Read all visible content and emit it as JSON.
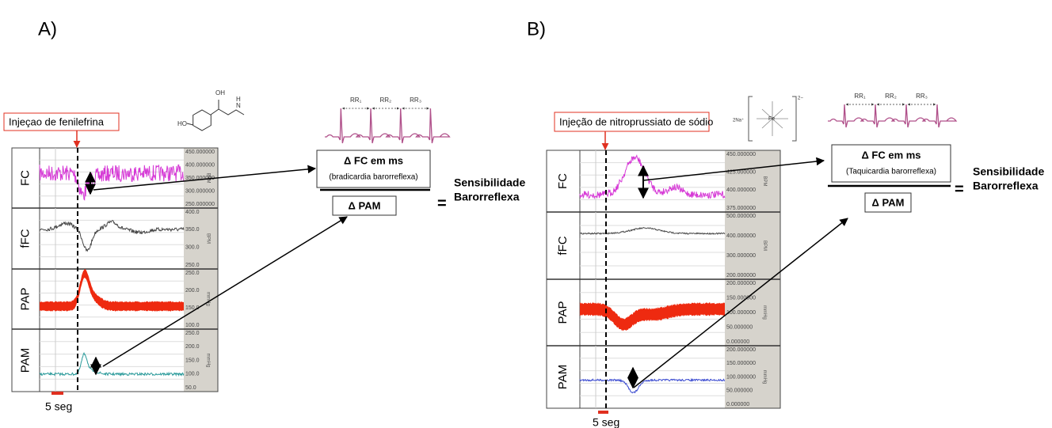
{
  "panels": [
    {
      "label": "A)",
      "injection": "Injeçao de fenilefrina",
      "rows": [
        {
          "name": "FC",
          "unit": "BPM",
          "ticks": [
            "450.000000",
            "400.000000",
            "350.000000",
            "300.000000",
            "250.000000"
          ]
        },
        {
          "name": "fFC",
          "unit": "BPM",
          "ticks": [
            "400.0",
            "350.0",
            "300.0",
            "250.0"
          ]
        },
        {
          "name": "PAP",
          "unit": "mmHg",
          "ticks": [
            "250.0",
            "200.0",
            "150.0",
            "100.0"
          ]
        },
        {
          "name": "PAM",
          "unit": "mmHg",
          "ticks": [
            "250.0",
            "200.0",
            "150.0",
            "100.0",
            "50.0"
          ]
        }
      ],
      "time_scale": "5 seg",
      "molecule_labels": [
        "HO",
        "OH",
        "H",
        "N"
      ],
      "ecg_labels": [
        "RR₁",
        "RR₂",
        "RR₃"
      ],
      "numerator": "Δ FC em ms",
      "numerator_note": "(bradicardia barorreflexa)",
      "denominator": "Δ PAM",
      "equals": "=",
      "result": [
        "Sensibilidade",
        "Barorreflexa"
      ]
    },
    {
      "label": "B)",
      "injection": "Injeção de nitroprussiato de sódio",
      "rows": [
        {
          "name": "FC",
          "unit": "BPM",
          "ticks": [
            "450.000000",
            "425.000000",
            "400.000000",
            "375.000000"
          ]
        },
        {
          "name": "fFC",
          "unit": "BPM",
          "ticks": [
            "500.000000",
            "400.000000",
            "300.000000",
            "200.000000"
          ]
        },
        {
          "name": "PAP",
          "unit": "mmHg",
          "ticks": [
            "200.000000",
            "150.000000",
            "100.000000",
            "50.000000",
            "0.000000"
          ]
        },
        {
          "name": "PAM",
          "unit": "mmHg",
          "ticks": [
            "200.000000",
            "150.000000",
            "100.000000",
            "50.000000",
            "0.000000"
          ]
        }
      ],
      "time_scale": "5 seg",
      "molecule_labels": [
        "2Na⁺",
        "Fe",
        "2−"
      ],
      "ecg_labels": [
        "RR₁",
        "RR₂",
        "RR₃"
      ],
      "numerator": "Δ FC em ms",
      "numerator_note": "(Taquicardia barorreflexa)",
      "denominator": "Δ PAM",
      "equals": "=",
      "result": [
        "Sensibilidade",
        "Barorreflexa"
      ]
    }
  ]
}
